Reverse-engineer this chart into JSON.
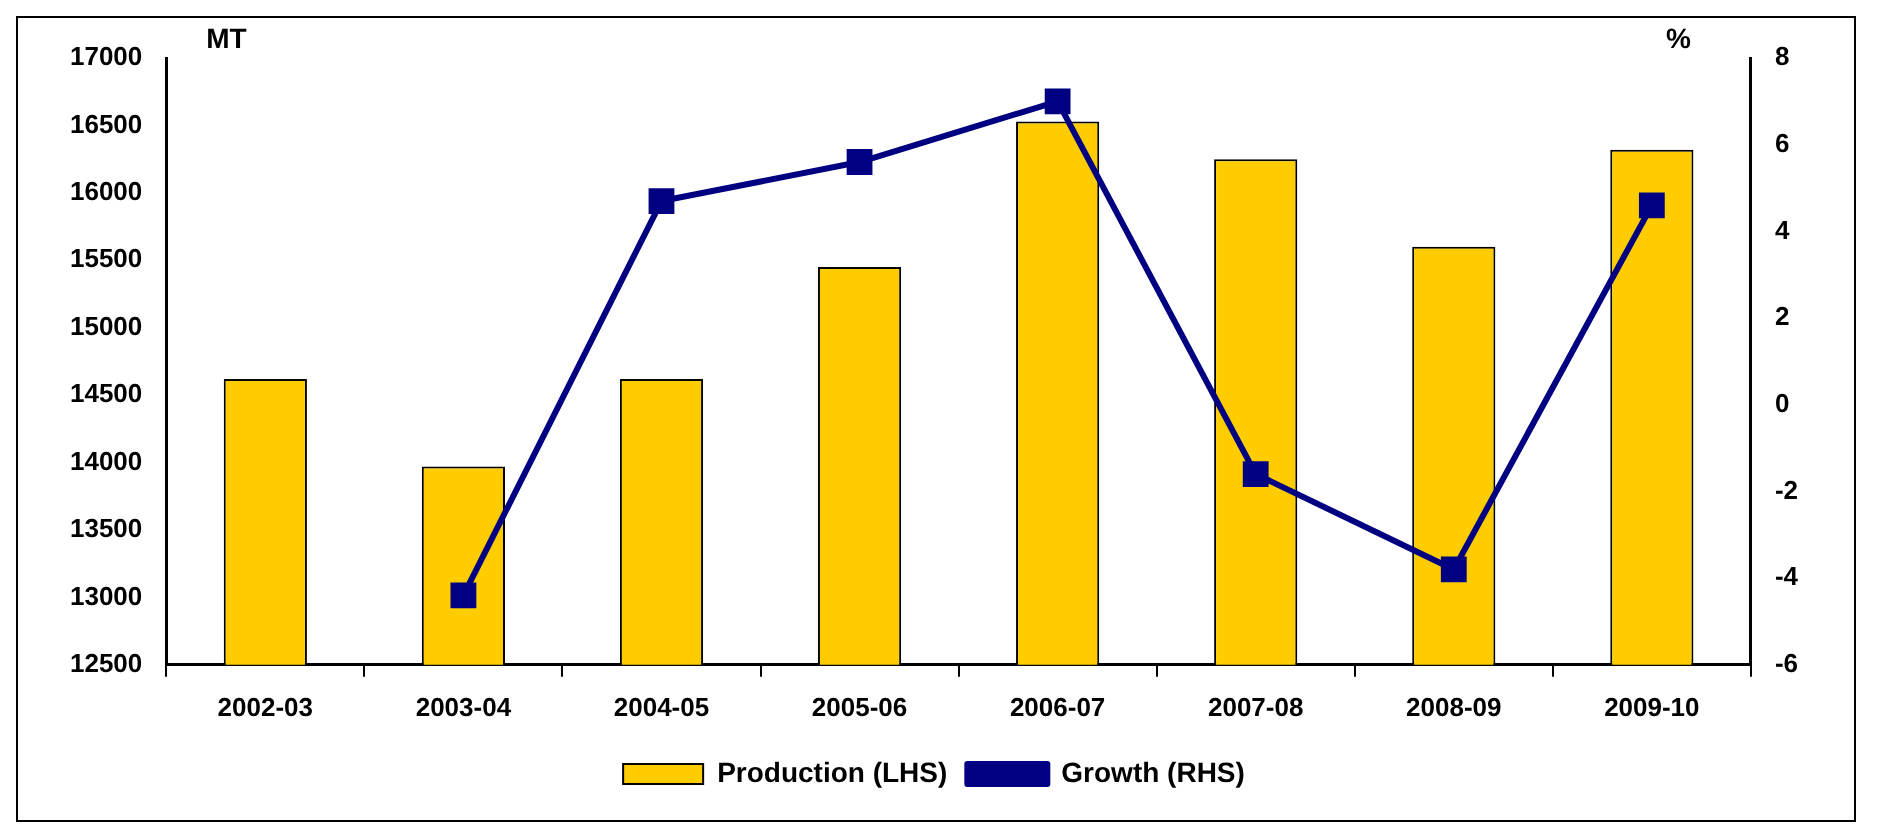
{
  "chart_data": {
    "type": "bar",
    "ylabel": "MT",
    "y2label": "%",
    "categories": [
      "2002-03",
      "2003-04",
      "2004-05",
      "2005-06",
      "2006-07",
      "2007-08",
      "2008-09",
      "2009-10"
    ],
    "series": [
      {
        "name": "Production (LHS)",
        "color": "#ffcc00",
        "values": [
          14620,
          13970,
          14620,
          15450,
          16530,
          16250,
          15600,
          16320
        ]
      },
      {
        "name": "Growth (RHS)",
        "type": "line",
        "axis": "y2",
        "color": "#000080",
        "marker": "square",
        "values": [
          null,
          -4.4,
          4.7,
          5.6,
          7.0,
          -1.6,
          -3.8,
          4.6
        ]
      }
    ],
    "ylim": [
      12500,
      17000
    ],
    "yticks": [
      12500,
      13000,
      13500,
      14000,
      14500,
      15000,
      15500,
      16000,
      16500,
      17000
    ],
    "y2lim": [
      -6,
      8
    ],
    "y2ticks": [
      -6,
      -4,
      -2,
      0,
      2,
      4,
      6,
      8
    ],
    "grid": false,
    "legend": "bottom"
  }
}
